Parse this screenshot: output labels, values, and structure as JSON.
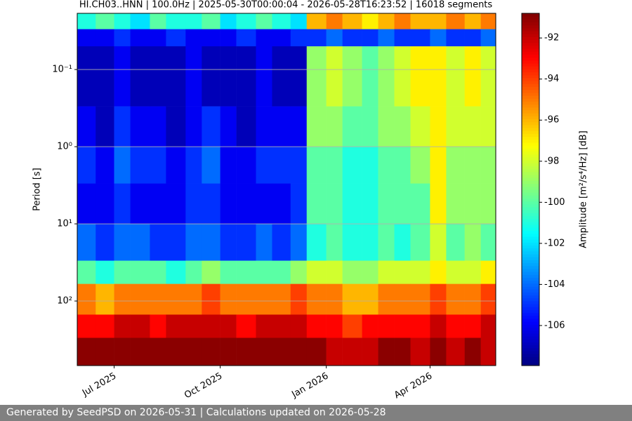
{
  "chart_data": {
    "type": "heatmap",
    "title": "HI.CH03..HNN | 100.0Hz | 2025-05-30T00:00:04 - 2026-05-28T16:23:52 | 16018 segments",
    "y_label": "Period [s]",
    "colorbar_label": "Amplitude [m²/s⁴/Hz] [dB]",
    "colormap": "jet",
    "yscale": "log",
    "y_inverted": true,
    "grid": "y",
    "xlim": [
      "2025-05-30",
      "2026-05-28"
    ],
    "xticks": [
      {
        "value": "2025-07-01",
        "label": "Jul 2025"
      },
      {
        "value": "2025-10-01",
        "label": "Oct 2025"
      },
      {
        "value": "2026-01-01",
        "label": "Jan 2026"
      },
      {
        "value": "2026-04-01",
        "label": "Apr 2026"
      }
    ],
    "ylim": [
      0.0187,
      686
    ],
    "yticks": [
      {
        "value": 0.1,
        "label": "10⁻¹"
      },
      {
        "value": 1,
        "label": "10⁰"
      },
      {
        "value": 10,
        "label": "10¹"
      },
      {
        "value": 100,
        "label": "10²"
      }
    ],
    "clim": [
      -107.95,
      -90.8
    ],
    "cticks": [
      -92,
      -94,
      -96,
      -98,
      -100,
      -102,
      -104,
      -106
    ],
    "x_bins": [
      "2025-05-30",
      "2025-06-15",
      "2025-07-01",
      "2025-07-15",
      "2025-08-01",
      "2025-08-15",
      "2025-09-01",
      "2025-09-15",
      "2025-10-01",
      "2025-10-15",
      "2025-11-01",
      "2025-11-15",
      "2025-12-01",
      "2025-12-15",
      "2026-01-01",
      "2026-01-15",
      "2026-02-01",
      "2026-02-15",
      "2026-03-01",
      "2026-03-15",
      "2026-04-01",
      "2026-04-15",
      "2026-05-01",
      "2026-05-15",
      "2026-05-28"
    ],
    "y_bins": [
      0.0187,
      0.03,
      0.05,
      0.3,
      1,
      3,
      10,
      30,
      60,
      150,
      300,
      686
    ],
    "values": [
      [
        -101,
        -100,
        -101,
        -102,
        -100,
        -101,
        -101,
        -100,
        -102,
        -101,
        -100,
        -101,
        -102,
        -96,
        -95,
        -96,
        -97,
        -96,
        -95,
        -96,
        -96,
        -95,
        -96,
        -95
      ],
      [
        -106,
        -106,
        -105,
        -106,
        -106,
        -105,
        -106,
        -106,
        -106,
        -105,
        -106,
        -106,
        -105,
        -105,
        -104,
        -105,
        -105,
        -104,
        -105,
        -105,
        -104,
        -105,
        -105,
        -104
      ],
      [
        -107,
        -107,
        -106,
        -107,
        -107,
        -107,
        -106,
        -107,
        -107,
        -107,
        -106,
        -107,
        -107,
        -99,
        -98,
        -99,
        -100,
        -99,
        -98,
        -97,
        -97,
        -98,
        -97,
        -98
      ],
      [
        -106,
        -107,
        -105,
        -106,
        -106,
        -107,
        -106,
        -105,
        -106,
        -107,
        -106,
        -106,
        -106,
        -99,
        -99,
        -100,
        -100,
        -99,
        -99,
        -98,
        -97,
        -98,
        -98,
        -98
      ],
      [
        -105,
        -106,
        -104,
        -105,
        -105,
        -106,
        -105,
        -104,
        -106,
        -106,
        -105,
        -105,
        -105,
        -100,
        -100,
        -101,
        -101,
        -100,
        -100,
        -99,
        -97,
        -99,
        -99,
        -99
      ],
      [
        -106,
        -106,
        -105,
        -106,
        -106,
        -106,
        -105,
        -105,
        -106,
        -106,
        -106,
        -106,
        -105,
        -100,
        -100,
        -101,
        -101,
        -100,
        -100,
        -100,
        -97,
        -99,
        -99,
        -99
      ],
      [
        -104,
        -105,
        -104,
        -104,
        -105,
        -105,
        -104,
        -104,
        -105,
        -105,
        -104,
        -105,
        -104,
        -101,
        -100,
        -101,
        -101,
        -100,
        -101,
        -100,
        -98,
        -100,
        -99,
        -100
      ],
      [
        -100,
        -101,
        -100,
        -100,
        -100,
        -101,
        -100,
        -99,
        -100,
        -100,
        -100,
        -100,
        -99,
        -98,
        -98,
        -99,
        -99,
        -98,
        -98,
        -98,
        -97,
        -98,
        -98,
        -97
      ],
      [
        -95,
        -96,
        -95,
        -95,
        -95,
        -95,
        -95,
        -94,
        -95,
        -95,
        -95,
        -95,
        -94,
        -95,
        -95,
        -96,
        -96,
        -95,
        -95,
        -95,
        -94,
        -95,
        -95,
        -94
      ],
      [
        -93,
        -93,
        -92,
        -92,
        -93,
        -92,
        -92,
        -92,
        -92,
        -93,
        -92,
        -92,
        -92,
        -93,
        -93,
        -94,
        -93,
        -93,
        -93,
        -93,
        -92,
        -93,
        -93,
        -92
      ],
      [
        -91,
        -91,
        -91,
        -91,
        -91,
        -91,
        -91,
        -91,
        -91,
        -91,
        -91,
        -91,
        -91,
        -91,
        -92,
        -92,
        -92,
        -91,
        -91,
        -92,
        -91,
        -92,
        -91,
        -92
      ]
    ]
  },
  "footer": "Generated by SeedPSD on 2026-05-31 | Calculations updated on 2026-05-28"
}
